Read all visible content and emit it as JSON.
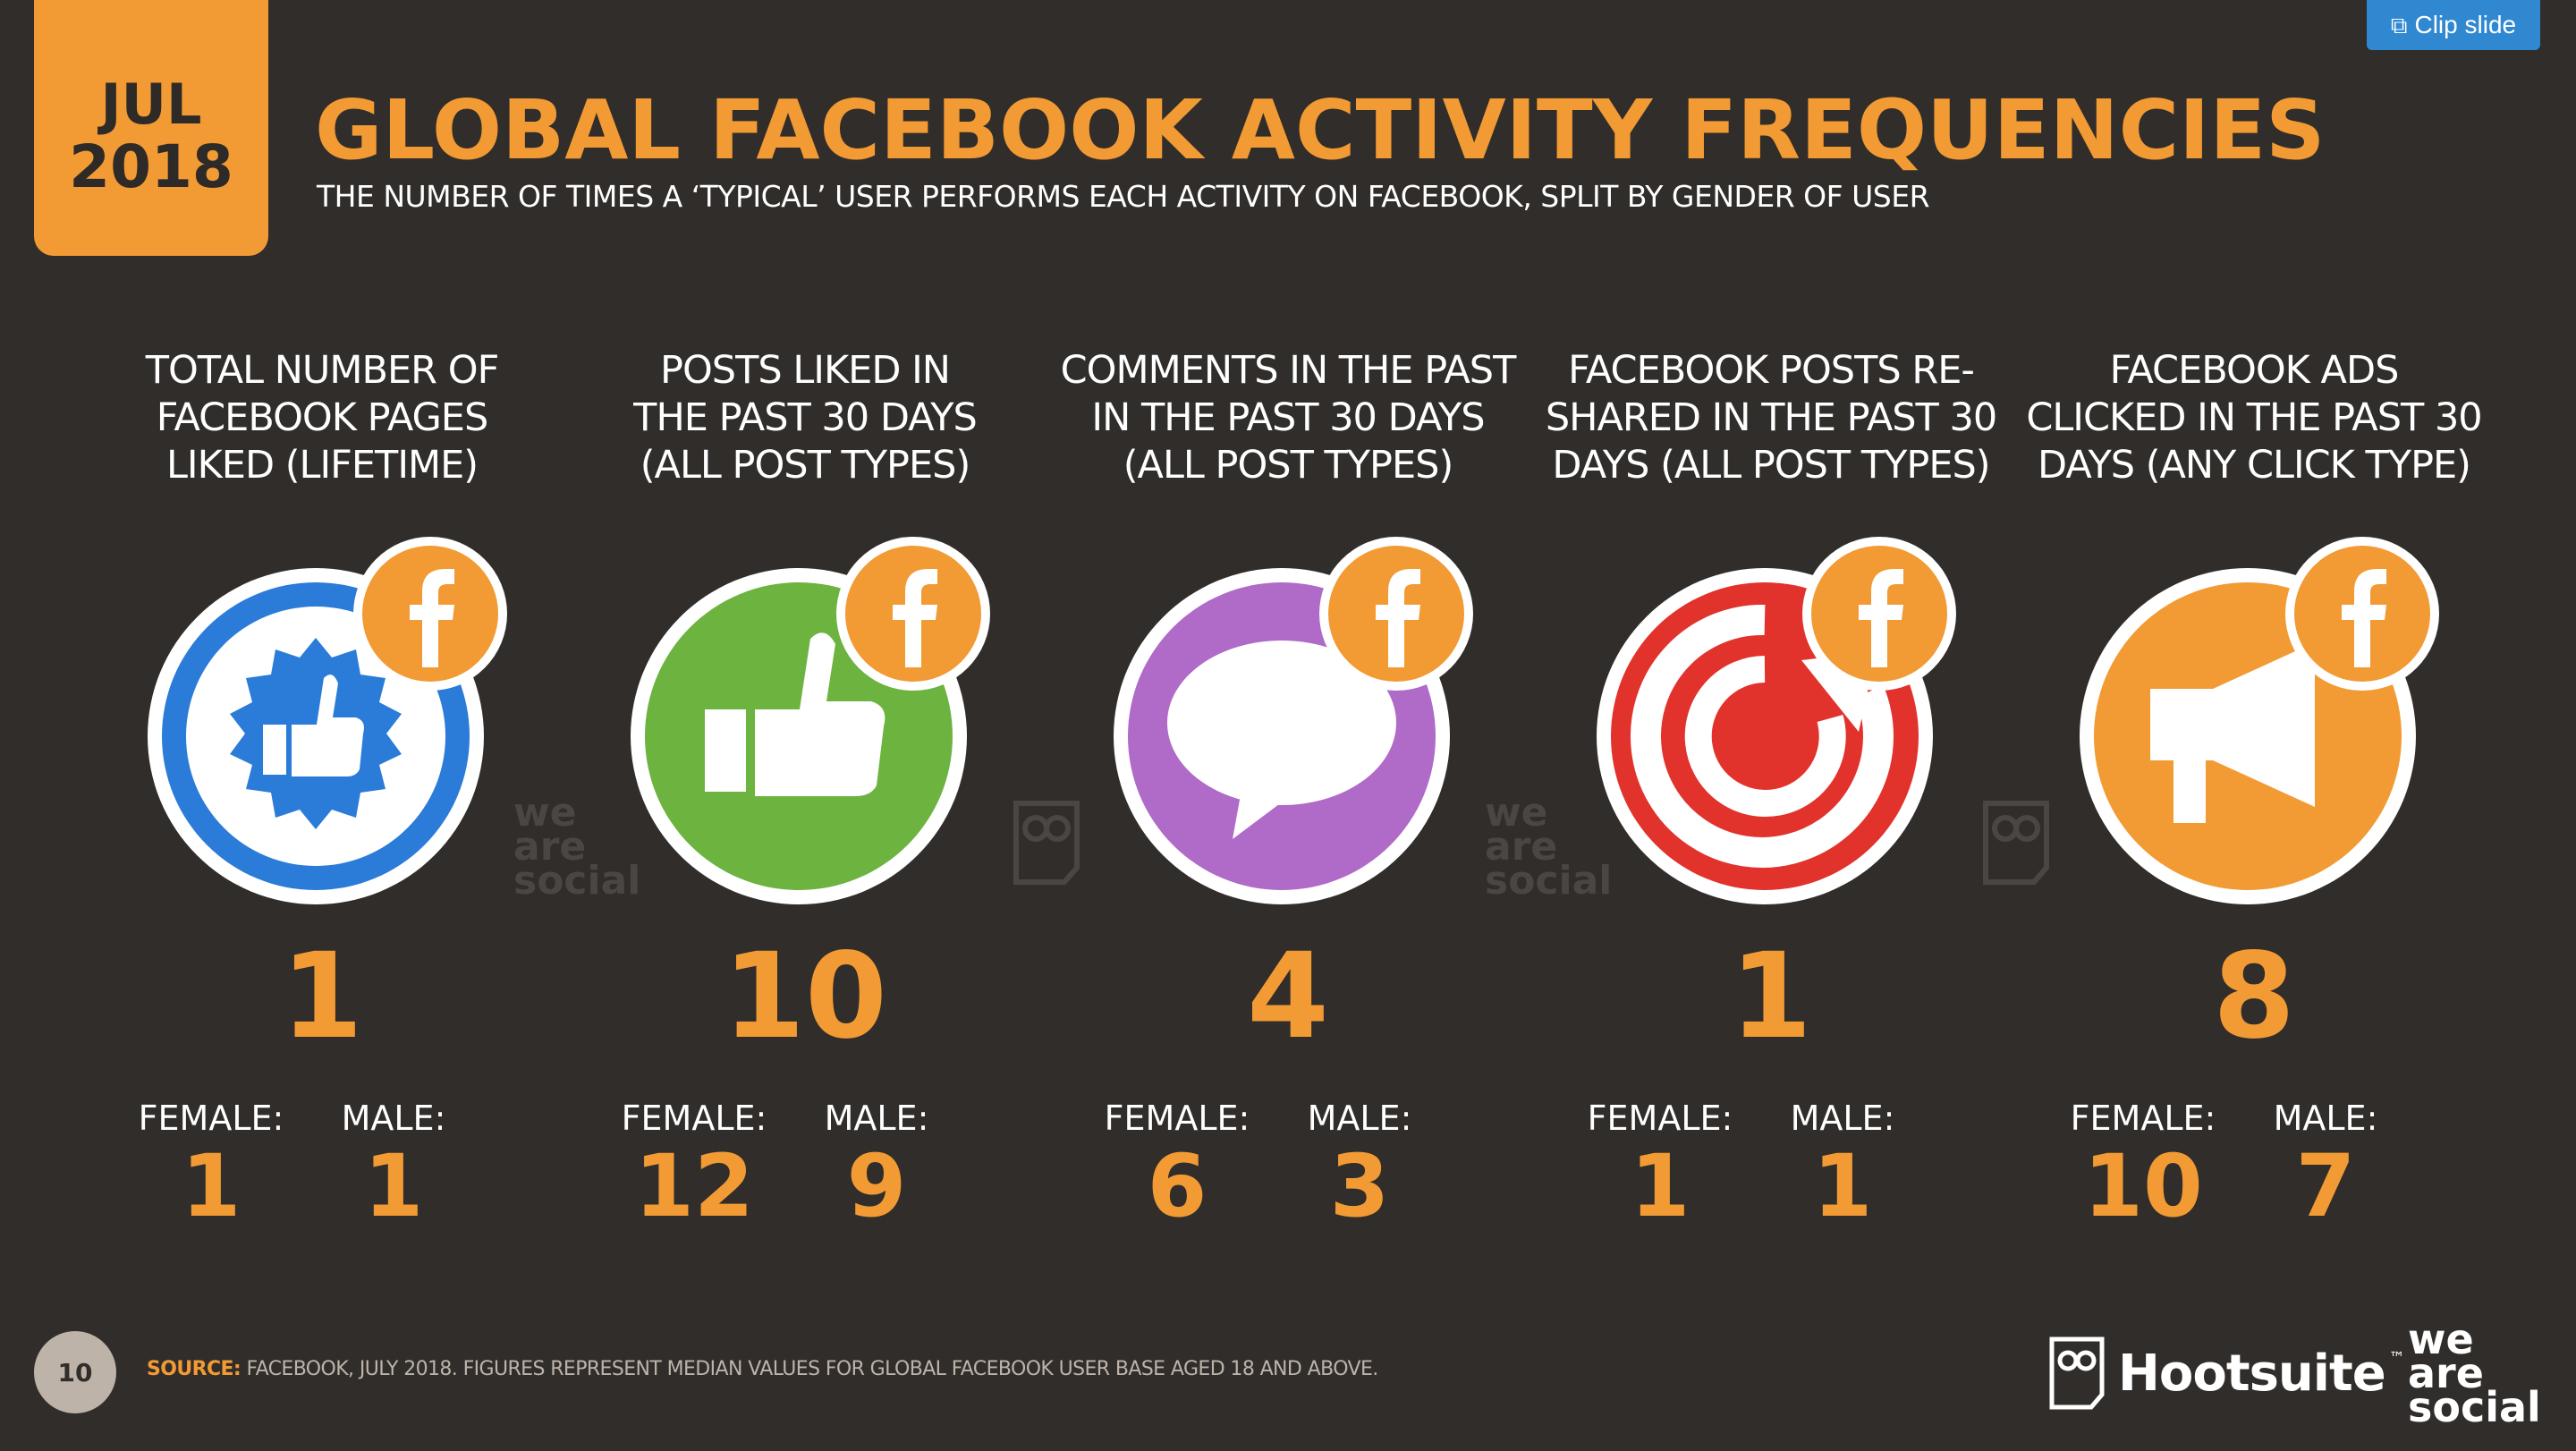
{
  "toolbar": {
    "clip_label": "Clip slide",
    "clip_icon": "clip-icon"
  },
  "header": {
    "month": "JUL",
    "year": "2018",
    "title": "GLOBAL FACEBOOK ACTIVITY FREQUENCIES",
    "subtitle": "THE NUMBER OF TIMES A ‘TYPICAL’ USER PERFORMS EACH ACTIVITY ON FACEBOOK, SPLIT BY GENDER OF USER"
  },
  "colors": {
    "background": "#302d2a",
    "accent": "#f29a34",
    "blue": "#2b7bd8",
    "green": "#6cb33f",
    "purple": "#b06ac7",
    "red": "#e2322c",
    "orange": "#f29a34"
  },
  "gender_labels": {
    "female": "FEMALE:",
    "male": "MALE:"
  },
  "metrics": [
    {
      "label": "TOTAL NUMBER OF\nFACEBOOK PAGES\nLIKED (LIFETIME)",
      "icon": "badge-thumbs-up-icon",
      "total": "1",
      "female": "1",
      "male": "1"
    },
    {
      "label": "POSTS LIKED IN\nTHE PAST 30 DAYS\n(ALL POST TYPES)",
      "icon": "thumbs-up-icon",
      "total": "10",
      "female": "12",
      "male": "9"
    },
    {
      "label": "COMMENTS IN THE PAST\nIN THE PAST 30 DAYS\n(ALL POST TYPES)",
      "icon": "speech-bubble-icon",
      "total": "4",
      "female": "6",
      "male": "3"
    },
    {
      "label": "FACEBOOK POSTS RE-\nSHARED IN THE PAST 30\nDAYS (ALL POST TYPES)",
      "icon": "reshare-arrow-icon",
      "total": "1",
      "female": "1",
      "male": "1"
    },
    {
      "label": "FACEBOOK ADS\nCLICKED IN THE PAST 30\nDAYS (ANY CLICK TYPE)",
      "icon": "megaphone-icon",
      "total": "8",
      "female": "10",
      "male": "7"
    }
  ],
  "watermarks": {
    "was_line1": "we",
    "was_line2": "are",
    "was_line3": "social"
  },
  "footer": {
    "page_number": "10",
    "source_label": "SOURCE:",
    "source_text": "FACEBOOK, JULY 2018. FIGURES REPRESENT MEDIAN VALUES FOR GLOBAL FACEBOOK USER BASE AGED 18 AND ABOVE.",
    "hootsuite": "Hootsuite",
    "tm": "™",
    "was_line1": "we",
    "was_line2": "are",
    "was_line3": "social"
  }
}
